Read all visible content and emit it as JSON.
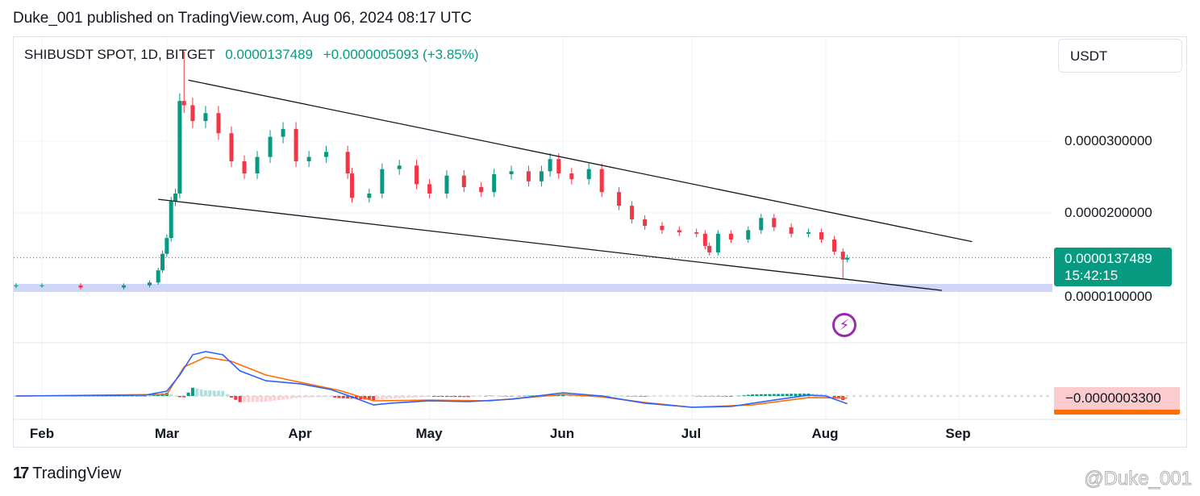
{
  "header": {
    "published": "Duke_001 published on TradingView.com, Aug 06, 2024 08:17 UTC"
  },
  "legend": {
    "symbol": "SHIBUSDT SPOT, 1D, BITGET",
    "last": "0.0000137489",
    "change": "+0.0000005093 (+3.85%)"
  },
  "currency": "USDT",
  "price_axis": {
    "ticks": [
      "0.0000300000",
      "0.0000200000",
      "0.0000100000"
    ]
  },
  "last_price_label": {
    "price": "0.0000137489",
    "countdown": "15:42:15"
  },
  "macd_label": "−0.0000003300",
  "time_axis": [
    "Feb",
    "Mar",
    "Apr",
    "May",
    "Jun",
    "Jul",
    "Aug",
    "Sep"
  ],
  "footer": {
    "brand": "TradingView",
    "watermark": "@Duke_001"
  },
  "icons": {
    "logo": "tradingview-logo",
    "event": "lightning-bolt-icon"
  },
  "colors": {
    "up": "#089981",
    "down": "#f23645",
    "macd": "#2962ff",
    "signal": "#ff6d00",
    "zone": "#c5cef5",
    "event": "#9c27b0"
  },
  "chart_data": [
    {
      "type": "candlestick",
      "title": "SHIBUSDT SPOT, 1D, BITGET",
      "ylim": [
        8.5e-06,
        4.25e-05
      ],
      "x_range": [
        "2024-01-26",
        "2024-09-28"
      ],
      "grid": true,
      "closes": [
        [
          "2024-01-26",
          9.9e-06
        ],
        [
          "2024-02-01",
          9.9e-06
        ],
        [
          "2024-02-10",
          9.6e-06
        ],
        [
          "2024-02-20",
          9.9e-06
        ],
        [
          "2024-02-26",
          1.03e-05
        ],
        [
          "2024-02-28",
          1.2e-05
        ],
        [
          "2024-02-29",
          1.43e-05
        ],
        [
          "2024-03-01",
          1.65e-05
        ],
        [
          "2024-03-02",
          2.16e-05
        ],
        [
          "2024-03-03",
          2.27e-05
        ],
        [
          "2024-03-04",
          3.56e-05
        ],
        [
          "2024-03-05",
          3.5e-05
        ],
        [
          "2024-03-07",
          3.28e-05
        ],
        [
          "2024-03-10",
          3.39e-05
        ],
        [
          "2024-03-13",
          3.11e-05
        ],
        [
          "2024-03-16",
          2.72e-05
        ],
        [
          "2024-03-19",
          2.55e-05
        ],
        [
          "2024-03-22",
          2.78e-05
        ],
        [
          "2024-03-25",
          3.06e-05
        ],
        [
          "2024-03-28",
          3.17e-05
        ],
        [
          "2024-03-31",
          2.72e-05
        ],
        [
          "2024-04-03",
          2.78e-05
        ],
        [
          "2024-04-07",
          2.85e-05
        ],
        [
          "2024-04-12",
          2.55e-05
        ],
        [
          "2024-04-13",
          2.21e-05
        ],
        [
          "2024-04-17",
          2.27e-05
        ],
        [
          "2024-04-20",
          2.61e-05
        ],
        [
          "2024-04-24",
          2.66e-05
        ],
        [
          "2024-04-28",
          2.4e-05
        ],
        [
          "2024-05-01",
          2.27e-05
        ],
        [
          "2024-05-05",
          2.52e-05
        ],
        [
          "2024-05-09",
          2.36e-05
        ],
        [
          "2024-05-13",
          2.29e-05
        ],
        [
          "2024-05-16",
          2.54e-05
        ],
        [
          "2024-05-20",
          2.58e-05
        ],
        [
          "2024-05-24",
          2.44e-05
        ],
        [
          "2024-05-27",
          2.58e-05
        ],
        [
          "2024-05-29",
          2.75e-05
        ],
        [
          "2024-05-31",
          2.55e-05
        ],
        [
          "2024-06-03",
          2.47e-05
        ],
        [
          "2024-06-07",
          2.61e-05
        ],
        [
          "2024-06-10",
          2.29e-05
        ],
        [
          "2024-06-14",
          2.1e-05
        ],
        [
          "2024-06-17",
          1.91e-05
        ],
        [
          "2024-06-20",
          1.82e-05
        ],
        [
          "2024-06-24",
          1.76e-05
        ],
        [
          "2024-06-28",
          1.73e-05
        ],
        [
          "2024-07-02",
          1.71e-05
        ],
        [
          "2024-07-04",
          1.54e-05
        ],
        [
          "2024-07-05",
          1.45e-05
        ],
        [
          "2024-07-07",
          1.71e-05
        ],
        [
          "2024-07-10",
          1.63e-05
        ],
        [
          "2024-07-14",
          1.76e-05
        ],
        [
          "2024-07-17",
          1.93e-05
        ],
        [
          "2024-07-20",
          1.8e-05
        ],
        [
          "2024-07-24",
          1.71e-05
        ],
        [
          "2024-07-28",
          1.73e-05
        ],
        [
          "2024-07-31",
          1.63e-05
        ],
        [
          "2024-08-03",
          1.46e-05
        ],
        [
          "2024-08-05",
          1.35e-05
        ],
        [
          "2024-08-06",
          1.37489e-05
        ]
      ],
      "notable_wicks": [
        [
          "2024-03-05",
          4.25e-05
        ],
        [
          "2024-08-05",
          1.09e-05
        ]
      ],
      "trendlines": [
        {
          "from": [
            "2024-03-06",
            3.85e-05
          ],
          "to": [
            "2024-09-04",
            1.6e-05
          ]
        },
        {
          "from": [
            "2024-02-28",
            2.19e-05
          ],
          "to": [
            "2024-08-28",
            9.2e-06
          ]
        }
      ],
      "support_zone": [
        9e-06,
        1.01e-05
      ],
      "last_price": 1.37489e-05
    },
    {
      "type": "line",
      "title": "MACD",
      "series": [
        {
          "values": [
            [
              "2024-01-26",
              0
            ],
            [
              "2024-02-25",
              5e-08
            ],
            [
              "2024-03-01",
              2.8e-07
            ],
            [
              "2024-03-04",
              1.22e-06
            ],
            [
              "2024-03-07",
              2.4e-06
            ],
            [
              "2024-03-10",
              2.59e-06
            ],
            [
              "2024-03-14",
              2.4e-06
            ],
            [
              "2024-03-18",
              1.46e-06
            ],
            [
              "2024-03-24",
              8.9e-07
            ],
            [
              "2024-04-01",
              7.1e-07
            ],
            [
              "2024-04-08",
              3.8e-07
            ],
            [
              "2024-04-13",
              -5e-08
            ],
            [
              "2024-04-18",
              -5.2e-07
            ],
            [
              "2024-04-22",
              -4.2e-07
            ],
            [
              "2024-05-01",
              -2.8e-07
            ],
            [
              "2024-05-10",
              -3.3e-07
            ],
            [
              "2024-05-20",
              -1.9e-07
            ],
            [
              "2024-06-01",
              1.9e-07
            ],
            [
              "2024-06-10",
              0
            ],
            [
              "2024-06-20",
              -4.2e-07
            ],
            [
              "2024-07-01",
              -6.6e-07
            ],
            [
              "2024-07-10",
              -6.1e-07
            ],
            [
              "2024-07-20",
              -2.4e-07
            ],
            [
              "2024-07-28",
              5e-08
            ],
            [
              "2024-08-01",
              0
            ],
            [
              "2024-08-06",
              -4.5e-07
            ]
          ]
        },
        {
          "values": [
            [
              "2024-01-26",
              0
            ],
            [
              "2024-03-01",
              9e-08
            ],
            [
              "2024-03-05",
              1.69e-06
            ],
            [
              "2024-03-10",
              2.26e-06
            ],
            [
              "2024-03-16",
              2.02e-06
            ],
            [
              "2024-03-24",
              1.22e-06
            ],
            [
              "2024-04-01",
              8e-07
            ],
            [
              "2024-04-10",
              3.3e-07
            ],
            [
              "2024-04-18",
              -2.8e-07
            ],
            [
              "2024-05-01",
              -2.4e-07
            ],
            [
              "2024-05-15",
              -2.8e-07
            ],
            [
              "2024-06-01",
              9e-08
            ],
            [
              "2024-06-10",
              -5e-08
            ],
            [
              "2024-06-20",
              -3.8e-07
            ],
            [
              "2024-07-01",
              -6.6e-07
            ],
            [
              "2024-07-15",
              -5.2e-07
            ],
            [
              "2024-07-28",
              -9e-08
            ],
            [
              "2024-08-06",
              -1.2e-07
            ]
          ]
        }
      ],
      "histogram_last": -3.3e-07
    }
  ]
}
